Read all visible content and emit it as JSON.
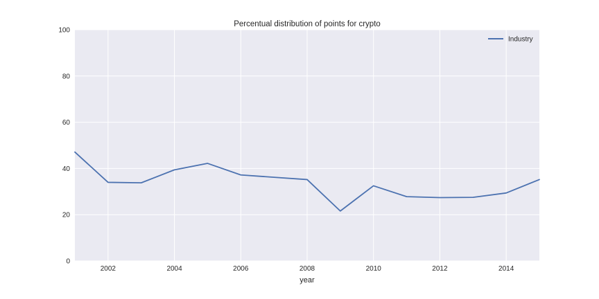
{
  "chart_data": {
    "type": "line",
    "title": "Percentual distribution of points for crypto",
    "xlabel": "year",
    "ylabel": "",
    "xlim": [
      2001,
      2015
    ],
    "ylim": [
      0,
      100
    ],
    "x_ticks": [
      2002,
      2004,
      2006,
      2008,
      2010,
      2012,
      2014
    ],
    "y_ticks": [
      0,
      20,
      40,
      60,
      80,
      100
    ],
    "grid": true,
    "legend_position": "top-right",
    "background_color": "#eaeaf2",
    "grid_color": "#ffffff",
    "x": [
      2001,
      2002,
      2003,
      2004,
      2005,
      2006,
      2007,
      2008,
      2009,
      2010,
      2011,
      2012,
      2013,
      2014,
      2015
    ],
    "series": [
      {
        "name": "Industry",
        "color": "#4c72b0",
        "values": [
          47.1,
          34.0,
          33.8,
          39.4,
          42.2,
          37.2,
          36.2,
          35.2,
          21.6,
          32.5,
          27.8,
          27.4,
          27.5,
          29.4,
          35.2
        ]
      }
    ]
  }
}
